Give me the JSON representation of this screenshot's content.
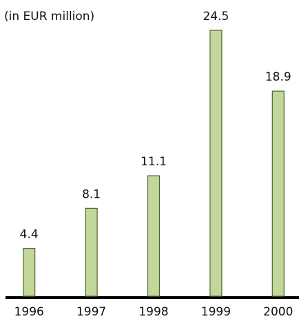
{
  "chart_data": {
    "type": "bar",
    "title": "(in EUR million)",
    "categories": [
      "1996",
      "1997",
      "1998",
      "1999",
      "2000"
    ],
    "values": [
      4.4,
      8.1,
      11.1,
      24.5,
      18.9
    ],
    "color": "#c3d69b",
    "edge_color": "#4f6228"
  }
}
